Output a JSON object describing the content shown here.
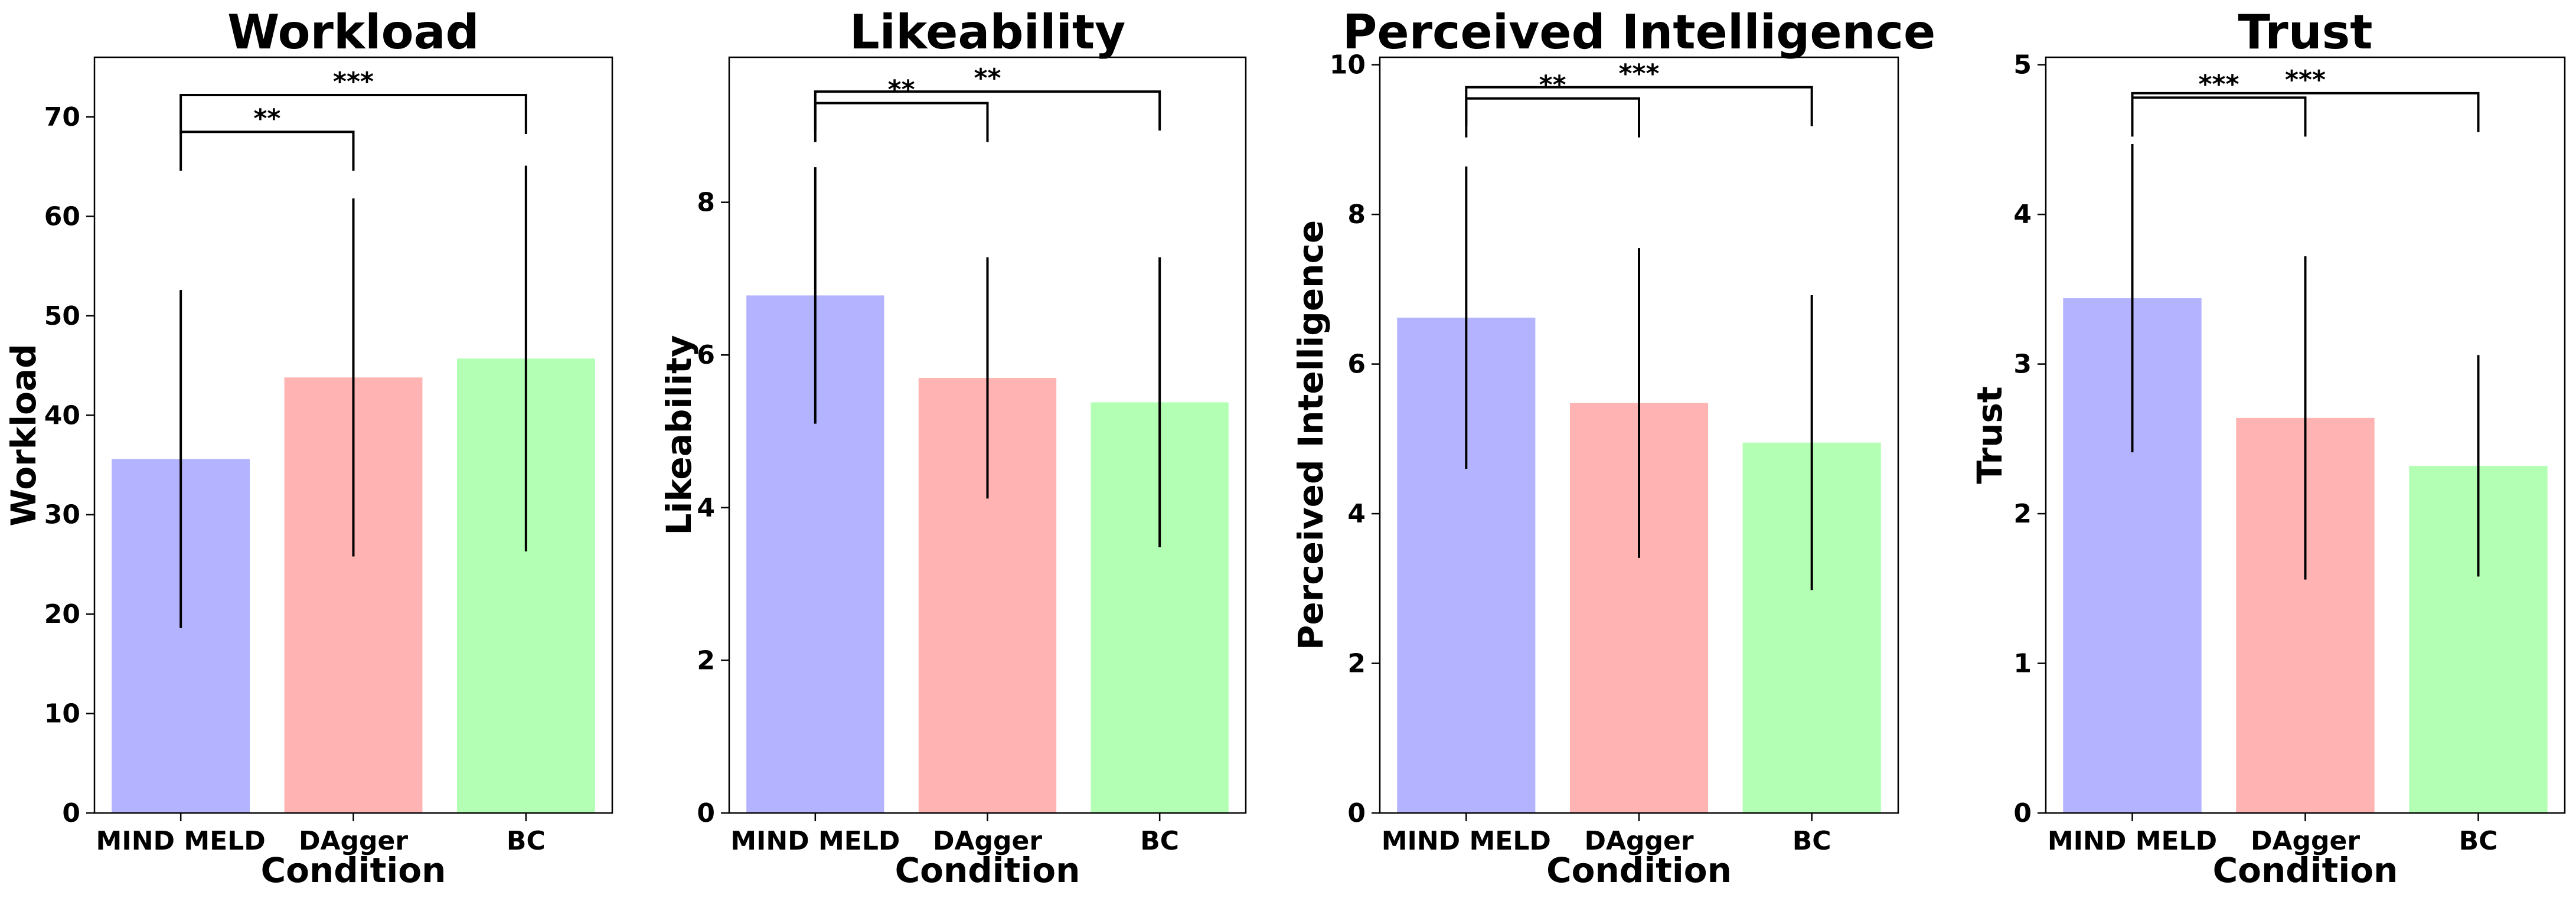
{
  "chart_data": [
    {
      "type": "bar",
      "title": "Workload",
      "xlabel": "Condition",
      "ylabel": "Workload",
      "categories": [
        "MIND MELD",
        "DAgger",
        "BC"
      ],
      "values": [
        35.6,
        43.8,
        45.7
      ],
      "error": [
        17.0,
        18.0,
        19.4
      ],
      "colors": [
        "#b3b3ff",
        "#ffb3b3",
        "#b3ffb3"
      ],
      "ylim": [
        0,
        76
      ],
      "yticks": [
        "0",
        "10",
        "20",
        "30",
        "40",
        "50",
        "60",
        "70"
      ],
      "significance": [
        {
          "from": 0,
          "to": 1,
          "label": "**",
          "y_level": 68.5
        },
        {
          "from": 0,
          "to": 2,
          "label": "***",
          "y_level": 72.2
        }
      ]
    },
    {
      "type": "bar",
      "title": "Likeability",
      "xlabel": "Condition",
      "ylabel": "Likeability",
      "categories": [
        "MIND MELD",
        "DAgger",
        "BC"
      ],
      "values": [
        6.78,
        5.7,
        5.38
      ],
      "error": [
        1.68,
        1.58,
        1.9
      ],
      "colors": [
        "#b3b3ff",
        "#ffb3b3",
        "#b3ffb3"
      ],
      "ylim": [
        0,
        9.9
      ],
      "yticks": [
        "0",
        "2",
        "4",
        "6",
        "8"
      ],
      "significance": [
        {
          "from": 0,
          "to": 1,
          "label": "**",
          "y_level": 9.3
        },
        {
          "from": 0,
          "to": 2,
          "label": "**",
          "y_level": 9.45
        }
      ]
    },
    {
      "type": "bar",
      "title": "Perceived Intelligence",
      "xlabel": "Condition",
      "ylabel": "Perceived Intelligence",
      "categories": [
        "MIND MELD",
        "DAgger",
        "BC"
      ],
      "values": [
        6.62,
        5.48,
        4.95
      ],
      "error": [
        2.02,
        2.07,
        1.97
      ],
      "colors": [
        "#b3b3ff",
        "#ffb3b3",
        "#b3ffb3"
      ],
      "ylim": [
        0,
        10.1
      ],
      "yticks": [
        "0",
        "2",
        "4",
        "6",
        "8",
        "10"
      ],
      "significance": [
        {
          "from": 0,
          "to": 1,
          "label": "**",
          "y_level": 9.55
        },
        {
          "from": 0,
          "to": 2,
          "label": "***",
          "y_level": 9.7
        }
      ]
    },
    {
      "type": "bar",
      "title": "Trust",
      "xlabel": "Condition",
      "ylabel": "Trust",
      "categories": [
        "MIND MELD",
        "DAgger",
        "BC"
      ],
      "values": [
        3.44,
        2.64,
        2.32
      ],
      "error": [
        1.03,
        1.08,
        0.74
      ],
      "colors": [
        "#b3b3ff",
        "#ffb3b3",
        "#b3ffb3"
      ],
      "ylim": [
        0,
        5.05
      ],
      "yticks": [
        "0",
        "1",
        "2",
        "3",
        "4",
        "5"
      ],
      "significance": [
        {
          "from": 0,
          "to": 1,
          "label": "***",
          "y_level": 4.78
        },
        {
          "from": 0,
          "to": 2,
          "label": "***",
          "y_level": 4.81
        }
      ]
    }
  ]
}
